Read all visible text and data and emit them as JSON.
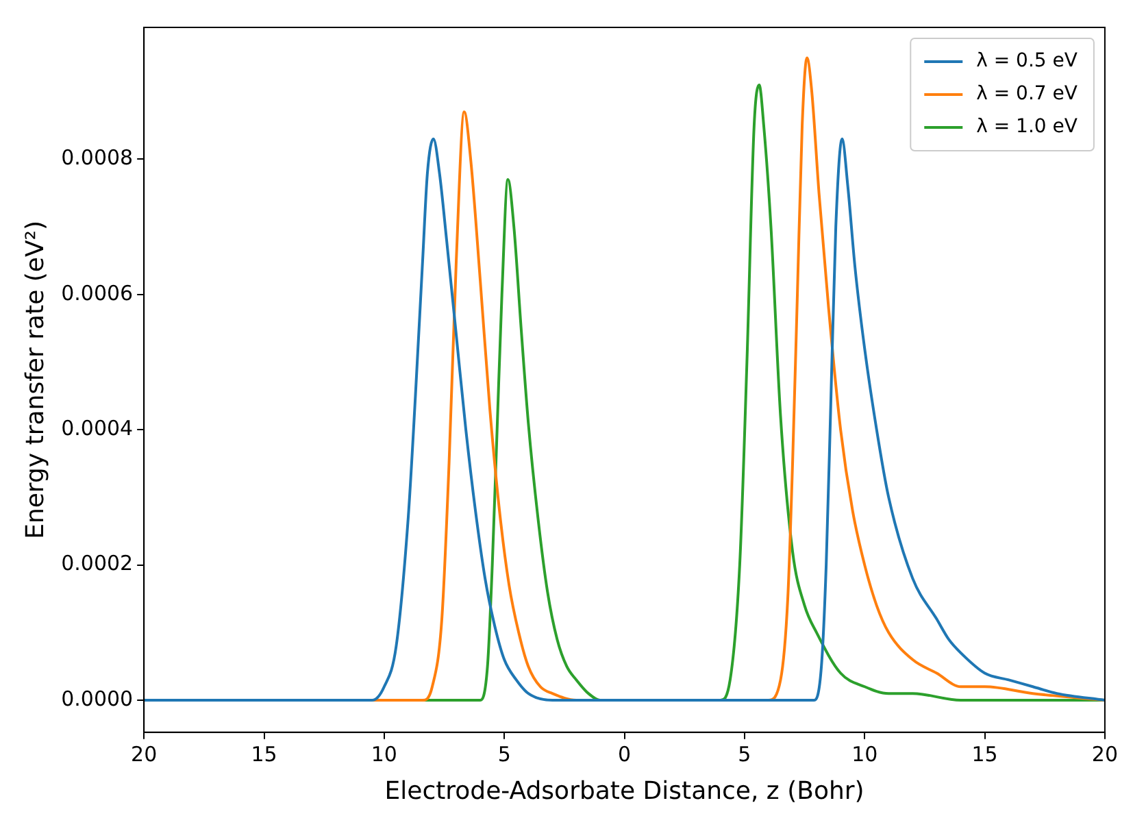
{
  "chart_data": {
    "type": "line",
    "xlabel": "Electrode-Adsorbate Distance, z (Bohr)",
    "ylabel": "Energy transfer rate (eV²)",
    "xlim": [
      -20,
      20
    ],
    "xticks": [
      {
        "value": -20,
        "label": "20"
      },
      {
        "value": -15,
        "label": "15"
      },
      {
        "value": -10,
        "label": "10"
      },
      {
        "value": -5,
        "label": "5"
      },
      0,
      5,
      10,
      15,
      20
    ],
    "ylim": [
      -4.74e-05,
      0.000995
    ],
    "yticks": [
      {
        "value": 0,
        "label": "0.0000"
      },
      {
        "value": 0.0002,
        "label": "0.0002"
      },
      {
        "value": 0.0004,
        "label": "0.0004"
      },
      {
        "value": 0.0006,
        "label": "0.0006"
      },
      {
        "value": 0.0008,
        "label": "0.0008"
      }
    ],
    "grid": false,
    "legend": "top right",
    "marker": "none",
    "line_style": "solid",
    "series": [
      {
        "name": "λ = 0.5 eV",
        "color": "#1f77b4",
        "x": [
          -20,
          -12,
          -10.5,
          -10,
          -9.5,
          -9,
          -8.7,
          -8.4,
          -8.2,
          -7.95,
          -7.7,
          -7.4,
          -7,
          -6.6,
          -6.2,
          -5.8,
          -5.4,
          -5,
          -4.5,
          -4,
          -3,
          0,
          7,
          7.9,
          8.2,
          8.4,
          8.6,
          8.8,
          9.06,
          9.3,
          9.6,
          10,
          10.5,
          11,
          12,
          13,
          13.5,
          14,
          15,
          16,
          17,
          18,
          20
        ],
        "values": [
          0,
          0,
          0,
          2e-05,
          8e-05,
          0.00027,
          0.00045,
          0.00065,
          0.00078,
          0.00083,
          0.00078,
          0.00068,
          0.00054,
          0.0004,
          0.00028,
          0.00018,
          0.00011,
          6e-05,
          3e-05,
          1e-05,
          0,
          0,
          0,
          0,
          5e-05,
          0.0002,
          0.00045,
          0.0007,
          0.00083,
          0.00076,
          0.00064,
          0.00052,
          0.0004,
          0.0003,
          0.00018,
          0.00012,
          9e-05,
          7e-05,
          4e-05,
          3e-05,
          2e-05,
          1e-05,
          0
        ]
      },
      {
        "name": "λ = 0.7 eV",
        "color": "#ff7f0e",
        "x": [
          -20,
          -9,
          -8.4,
          -8,
          -7.6,
          -7.3,
          -7,
          -6.67,
          -6.4,
          -6,
          -5.6,
          -5.2,
          -4.8,
          -4.4,
          -4,
          -3.5,
          -3,
          -2,
          5,
          6,
          6.5,
          6.8,
          7,
          7.2,
          7.4,
          7.6,
          7.8,
          8.1,
          8.5,
          9,
          9.5,
          10,
          10.5,
          11,
          12,
          13,
          14,
          15,
          17,
          20
        ],
        "values": [
          0,
          0,
          0,
          2e-05,
          0.00012,
          0.00035,
          0.00065,
          0.00087,
          0.0008,
          0.00062,
          0.00043,
          0.00028,
          0.00017,
          0.0001,
          5e-05,
          2e-05,
          1e-05,
          0,
          0,
          0,
          3e-05,
          0.00015,
          0.00035,
          0.0006,
          0.00085,
          0.00095,
          0.0009,
          0.00075,
          0.00058,
          0.0004,
          0.00028,
          0.0002,
          0.00014,
          0.0001,
          6e-05,
          4e-05,
          2e-05,
          2e-05,
          1e-05,
          0
        ]
      },
      {
        "name": "λ = 1.0 eV",
        "color": "#2ca02c",
        "x": [
          -20,
          -6.5,
          -6,
          -5.7,
          -5.5,
          -5.3,
          -5.1,
          -4.85,
          -4.6,
          -4.3,
          -4,
          -3.6,
          -3.2,
          -2.8,
          -2.4,
          -2,
          -1.5,
          -1,
          0,
          3,
          4,
          4.4,
          4.8,
          5.1,
          5.4,
          5.61,
          5.8,
          6.1,
          6.5,
          7,
          7.5,
          8,
          9,
          10,
          11,
          12,
          14,
          20
        ],
        "values": [
          0,
          0,
          0,
          5e-05,
          0.0002,
          0.0004,
          0.0006,
          0.00077,
          0.0007,
          0.00055,
          0.00041,
          0.00027,
          0.00016,
          9e-05,
          5e-05,
          3e-05,
          1e-05,
          0,
          0,
          0,
          0,
          3e-05,
          0.0002,
          0.0005,
          0.00085,
          0.00091,
          0.00085,
          0.0007,
          0.00042,
          0.00022,
          0.00014,
          0.0001,
          4e-05,
          2e-05,
          1e-05,
          1e-05,
          0,
          0
        ]
      }
    ]
  }
}
